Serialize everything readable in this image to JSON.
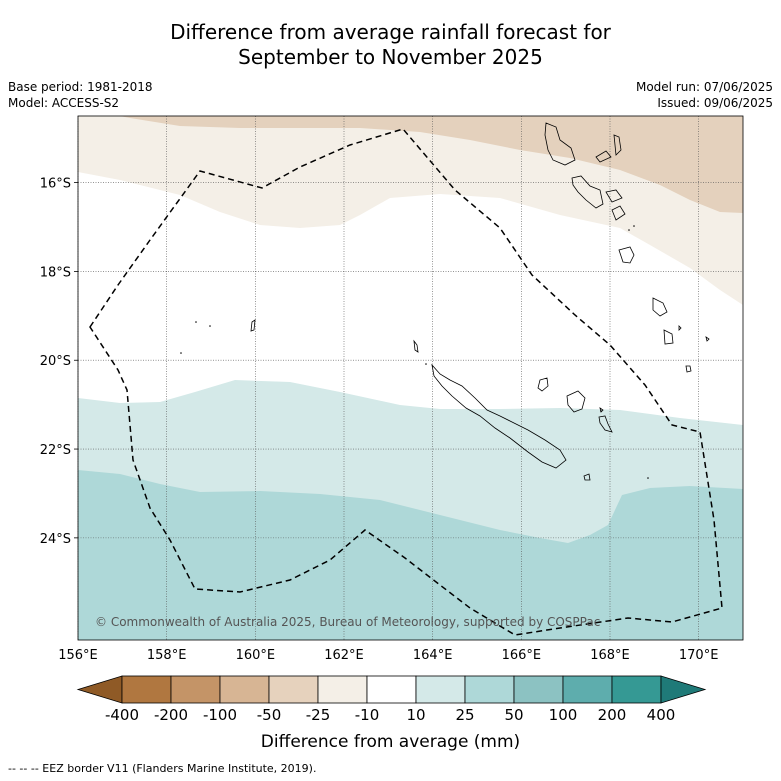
{
  "title_line1": "Difference from average rainfall forecast for",
  "title_line2": "September to November 2025",
  "base_period": "Base period: 1981-2018",
  "model": "Model: ACCESS-S2",
  "model_run": "Model run: 07/06/2025",
  "issued": "Issued: 09/06/2025",
  "copyright": "© Commonwealth of Australia 2025, Bureau of Meteorology, supported by COSPPac",
  "lat_labels": [
    "16°S",
    "18°S",
    "20°S",
    "22°S",
    "24°S"
  ],
  "lat_values": [
    -16,
    -18,
    -20,
    -22,
    -24
  ],
  "lon_labels": [
    "156°E",
    "158°E",
    "160°E",
    "162°E",
    "164°E",
    "166°E",
    "168°E",
    "170°E"
  ],
  "lon_values": [
    156,
    158,
    160,
    162,
    164,
    166,
    168,
    170
  ],
  "map_extent": {
    "lon_min": 156,
    "lon_max": 171,
    "lat_min": -26.3,
    "lat_max": -14.5
  },
  "colorbar": {
    "ticks": [
      "-400",
      "-200",
      "-100",
      "-50",
      "-25",
      "-10",
      "10",
      "25",
      "50",
      "100",
      "200",
      "400"
    ],
    "colors": [
      "#8f5a26",
      "#b07740",
      "#c49467",
      "#d7b594",
      "#e6d2bd",
      "#f4efe7",
      "#ffffff",
      "#d4e9e8",
      "#aed8d8",
      "#8cc2c2",
      "#5eadad",
      "#359994",
      "#1f7a78"
    ],
    "label": "Difference from average (mm)"
  },
  "footer": "-- -- -- EEZ border V11 (Flanders Marine Institute, 2019)."
}
